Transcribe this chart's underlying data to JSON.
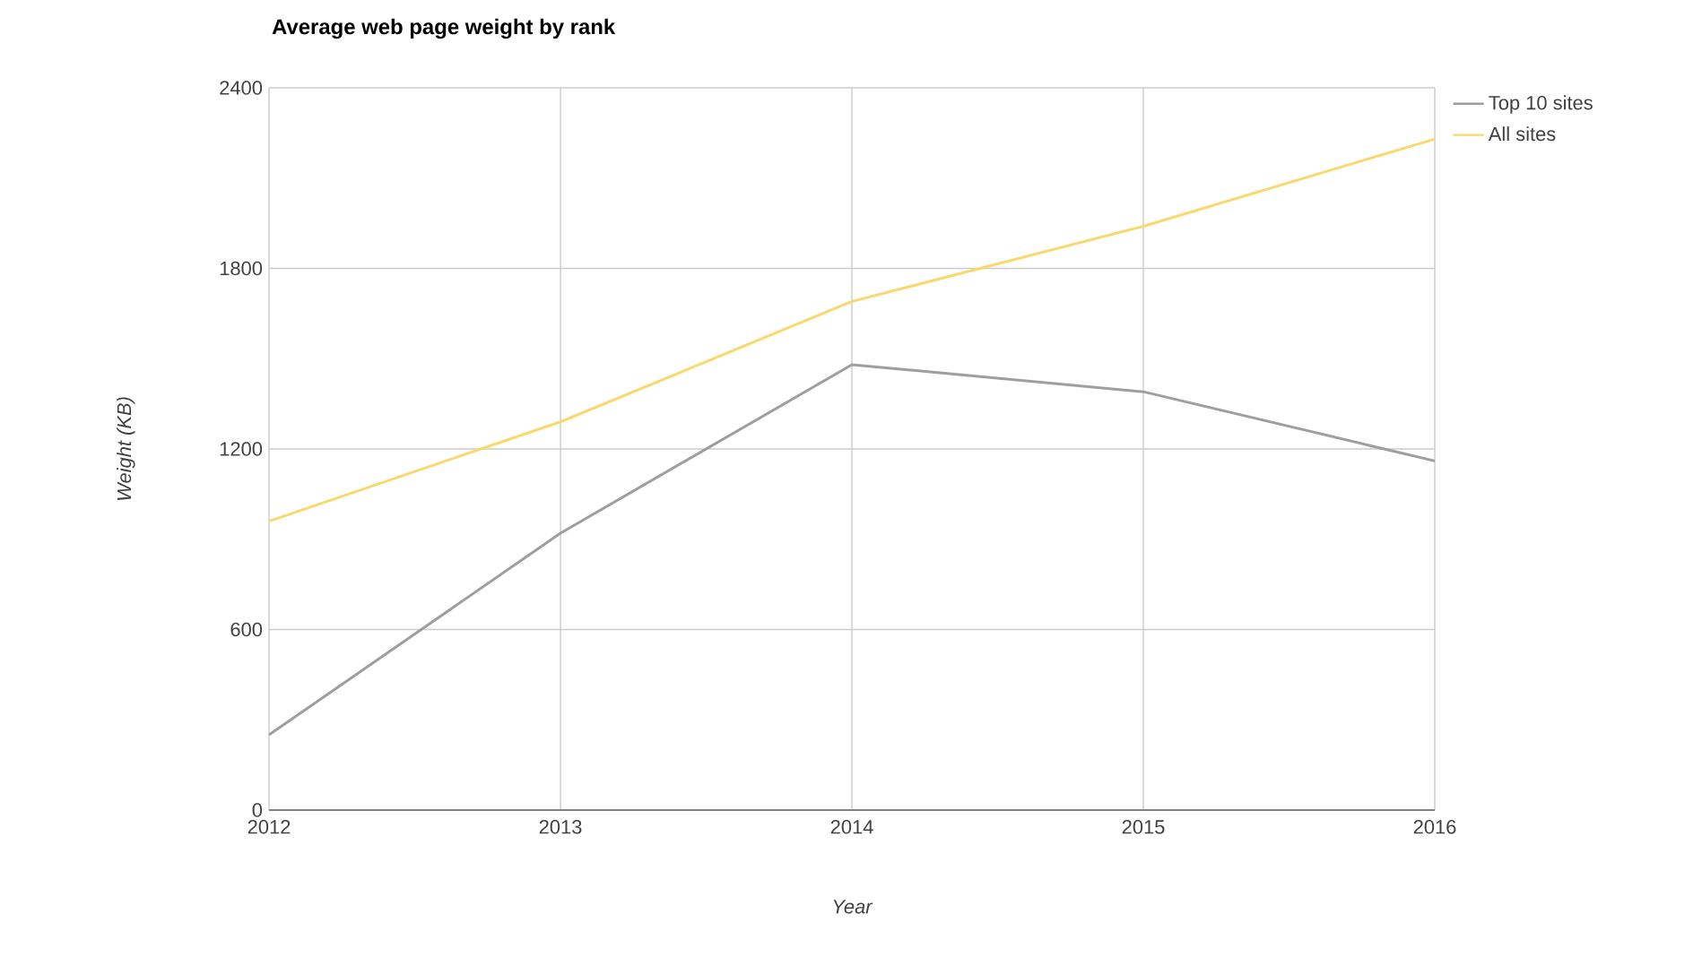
{
  "chart_data": {
    "type": "line",
    "title": "Average web page weight by rank",
    "xlabel": "Year",
    "ylabel": "Weight (KB)",
    "x": [
      2012,
      2013,
      2014,
      2015,
      2016
    ],
    "series": [
      {
        "name": "Top 10 sites",
        "color": "#9e9e9e",
        "values": [
          250,
          920,
          1480,
          1390,
          1160
        ]
      },
      {
        "name": "All sites",
        "color": "#f9d96e",
        "values": [
          960,
          1290,
          1690,
          1940,
          2230
        ]
      }
    ],
    "xlim": [
      2012,
      2016
    ],
    "xticks": [
      2012,
      2013,
      2014,
      2015,
      2016
    ],
    "ylim": [
      0,
      2400
    ],
    "yticks": [
      0,
      600,
      1200,
      1800,
      2400
    ],
    "grid": true,
    "legend": "top right",
    "marker": "none",
    "line_style": "solid"
  }
}
